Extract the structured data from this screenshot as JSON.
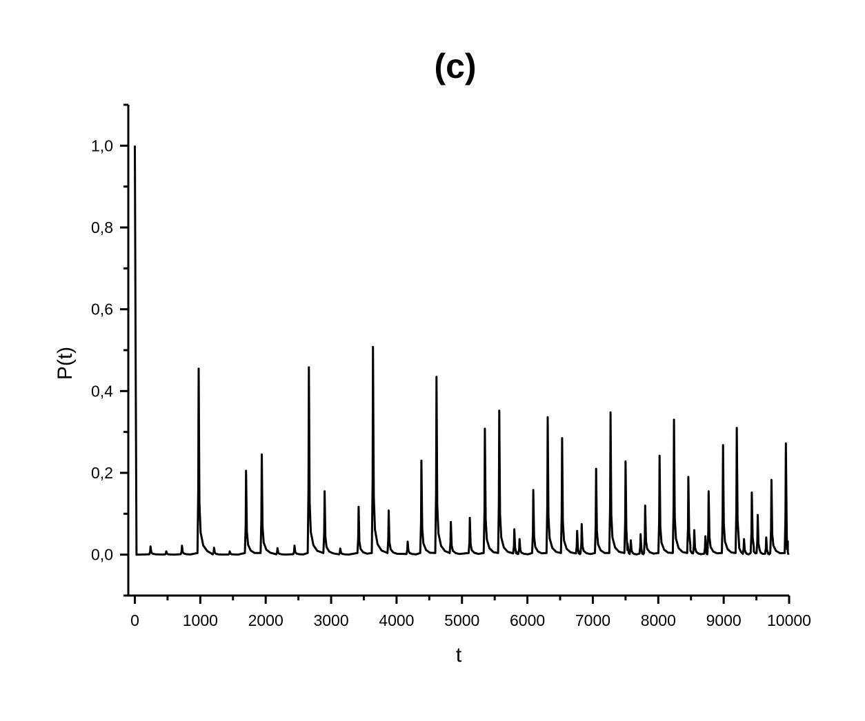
{
  "chart_data": {
    "type": "line",
    "title": "(c)",
    "xlabel": "t",
    "ylabel": "P(t)",
    "xlim": [
      -100,
      10000
    ],
    "ylim": [
      -0.1,
      1.1
    ],
    "x_ticks": [
      0,
      1000,
      2000,
      3000,
      4000,
      5000,
      6000,
      7000,
      8000,
      9000,
      10000
    ],
    "x_tick_labels": [
      "0",
      "1000",
      "2000",
      "3000",
      "4000",
      "5000",
      "6000",
      "7000",
      "8000",
      "9000",
      "10000"
    ],
    "x_minor_ticks": [
      500,
      1500,
      2500,
      3500,
      4500,
      5500,
      6500,
      7500,
      8500,
      9500
    ],
    "y_ticks": [
      0,
      0.2,
      0.4,
      0.6,
      0.8,
      1.0
    ],
    "y_tick_labels": [
      "0,0",
      "0,2",
      "0,4",
      "0,6",
      "0,8",
      "1,0"
    ],
    "y_minor_ticks": [
      -0.1,
      0.1,
      0.3,
      0.5,
      0.7,
      0.9,
      1.1
    ],
    "grid": false,
    "legend": "none",
    "line_color": "#000000",
    "baseline": 0.0,
    "series": [
      {
        "initial": {
          "x": 0,
          "y": 1.0
        },
        "peaks": [
          {
            "t": 240,
            "p": 0.02
          },
          {
            "t": 480,
            "p": 0.008
          },
          {
            "t": 720,
            "p": 0.022
          },
          {
            "t": 975,
            "p": 0.455
          },
          {
            "t": 1210,
            "p": 0.017
          },
          {
            "t": 1450,
            "p": 0.008
          },
          {
            "t": 1700,
            "p": 0.205
          },
          {
            "t": 1940,
            "p": 0.245
          },
          {
            "t": 2180,
            "p": 0.016
          },
          {
            "t": 2440,
            "p": 0.022
          },
          {
            "t": 2660,
            "p": 0.458
          },
          {
            "t": 2900,
            "p": 0.155
          },
          {
            "t": 3140,
            "p": 0.015
          },
          {
            "t": 3420,
            "p": 0.117
          },
          {
            "t": 3640,
            "p": 0.508
          },
          {
            "t": 3880,
            "p": 0.108
          },
          {
            "t": 4170,
            "p": 0.032
          },
          {
            "t": 4380,
            "p": 0.23
          },
          {
            "t": 4610,
            "p": 0.435
          },
          {
            "t": 4830,
            "p": 0.08
          },
          {
            "t": 5120,
            "p": 0.09
          },
          {
            "t": 5350,
            "p": 0.308
          },
          {
            "t": 5570,
            "p": 0.352
          },
          {
            "t": 5800,
            "p": 0.062
          },
          {
            "t": 5880,
            "p": 0.038
          },
          {
            "t": 6090,
            "p": 0.158
          },
          {
            "t": 6310,
            "p": 0.336
          },
          {
            "t": 6530,
            "p": 0.285
          },
          {
            "t": 6760,
            "p": 0.058
          },
          {
            "t": 6830,
            "p": 0.075
          },
          {
            "t": 7050,
            "p": 0.21
          },
          {
            "t": 7270,
            "p": 0.348
          },
          {
            "t": 7500,
            "p": 0.228
          },
          {
            "t": 7580,
            "p": 0.035
          },
          {
            "t": 7730,
            "p": 0.05
          },
          {
            "t": 7800,
            "p": 0.12
          },
          {
            "t": 8020,
            "p": 0.242
          },
          {
            "t": 8240,
            "p": 0.33
          },
          {
            "t": 8460,
            "p": 0.19
          },
          {
            "t": 8550,
            "p": 0.06
          },
          {
            "t": 8720,
            "p": 0.045
          },
          {
            "t": 8770,
            "p": 0.155
          },
          {
            "t": 8990,
            "p": 0.268
          },
          {
            "t": 9200,
            "p": 0.31
          },
          {
            "t": 9310,
            "p": 0.038
          },
          {
            "t": 9430,
            "p": 0.152
          },
          {
            "t": 9520,
            "p": 0.097
          },
          {
            "t": 9650,
            "p": 0.042
          },
          {
            "t": 9730,
            "p": 0.183
          },
          {
            "t": 9950,
            "p": 0.272
          }
        ]
      }
    ]
  }
}
